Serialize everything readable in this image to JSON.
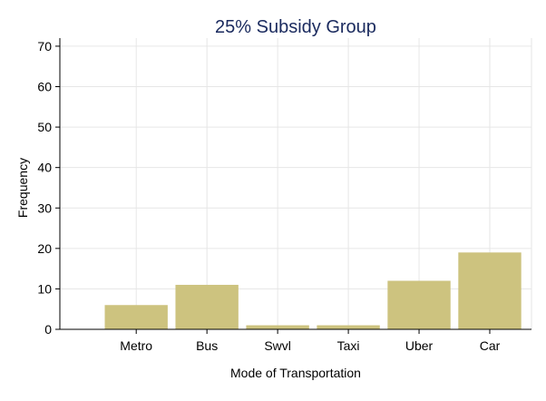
{
  "chart_data": {
    "type": "bar",
    "title": "25% Subsidy Group",
    "xlabel": "Mode of Transportation",
    "ylabel": "Frequency",
    "categories": [
      "Metro",
      "Bus",
      "Swvl",
      "Taxi",
      "Uber",
      "Car"
    ],
    "values": [
      6,
      11,
      1,
      1,
      12,
      19
    ],
    "ylim": [
      0,
      72
    ],
    "yticks": [
      0,
      10,
      20,
      30,
      40,
      50,
      60,
      70
    ],
    "grid": true,
    "legend": "none",
    "colors": {
      "bar": "#cdc37f",
      "title": "#1a2a5e",
      "grid": "#e6e6e6",
      "axis": "#000000",
      "text": "#000000"
    }
  }
}
